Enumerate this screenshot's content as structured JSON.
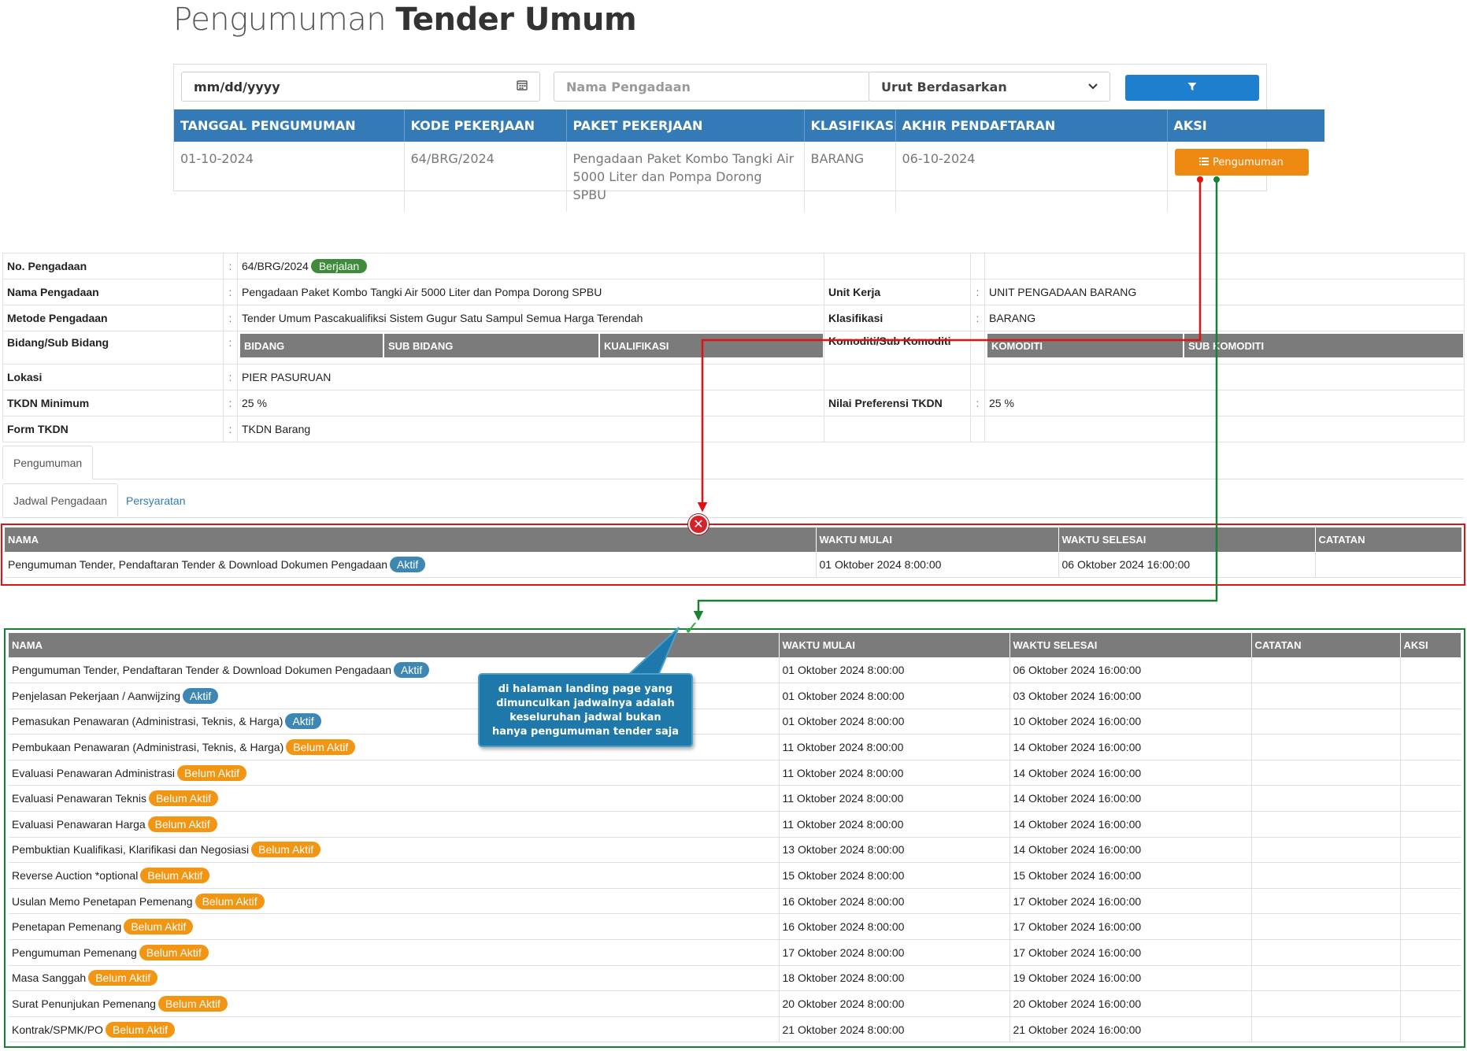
{
  "page_title": {
    "light": "Pengumuman",
    "bold": "Tender Umum"
  },
  "filters": {
    "date_value": "mm/dd/yyyy",
    "name_placeholder": "Nama Pengadaan",
    "sort_value": "Urut Berdasarkan",
    "filter_icon": "filter-icon",
    "calendar_icon": "calendar-icon"
  },
  "tender_table": {
    "headers": [
      "TANGGAL PENGUMUMAN",
      "KODE PEKERJAAN",
      "PAKET PEKERJAAN",
      "KLASIFIKASI",
      "AKHIR PENDAFTARAN",
      "AKSI"
    ],
    "rows": [
      {
        "tanggal": "01-10-2024",
        "kode": "64/BRG/2024",
        "paket": "Pengadaan Paket Kombo Tangki Air 5000 Liter dan Pompa Dorong SPBU",
        "klasifikasi": "BARANG",
        "akhir": "06-10-2024",
        "action_label": "Pengumuman",
        "action_icon": "list-icon"
      }
    ]
  },
  "detail": {
    "colon": ":",
    "no_pengadaan": {
      "label": "No. Pengadaan",
      "value": "64/BRG/2024",
      "status": "Berjalan"
    },
    "nama_pengadaan": {
      "label": "Nama Pengadaan",
      "value": "Pengadaan Paket Kombo Tangki Air 5000 Liter dan Pompa Dorong SPBU"
    },
    "unit_kerja": {
      "label": "Unit Kerja",
      "value": "UNIT PENGADAAN BARANG"
    },
    "metode_pengadaan": {
      "label": "Metode Pengadaan",
      "value": "Tender Umum Pascakualifiksi Sistem Gugur Satu Sampul Semua Harga Terendah"
    },
    "klasifikasi": {
      "label": "Klasifikasi",
      "value": "BARANG"
    },
    "bidang": {
      "label": "Bidang/Sub Bidang",
      "headers": [
        "BIDANG",
        "SUB BIDANG",
        "KUALIFIKASI"
      ]
    },
    "komoditi": {
      "label": "Komoditi/Sub Komoditi",
      "headers": [
        "KOMODITI",
        "SUB KOMODITI"
      ]
    },
    "lokasi": {
      "label": "Lokasi",
      "value": "PIER PASURUAN"
    },
    "tkdn_minimum": {
      "label": "TKDN Minimum",
      "value": "25 %"
    },
    "nilai_preferensi": {
      "label": "Nilai Preferensi TKDN",
      "value": "25 %"
    },
    "form_tkdn": {
      "label": "Form TKDN",
      "value": "TKDN Barang"
    }
  },
  "tabs": {
    "outer": [
      "Pengumuman"
    ],
    "inner": [
      "Jadwal Pengadaan",
      "Persyaratan"
    ]
  },
  "old_schedule": {
    "headers": [
      "NAMA",
      "WAKTU MULAI",
      "WAKTU SELESAI",
      "CATATAN"
    ],
    "rows": [
      {
        "nama": "Pengumuman Tender, Pendaftaran Tender & Download Dokumen Pengadaan",
        "status": "Aktif",
        "mulai": "01 Oktober 2024 8:00:00",
        "selesai": "06 Oktober 2024 16:00:00",
        "catatan": ""
      }
    ]
  },
  "new_schedule": {
    "headers": [
      "NAMA",
      "WAKTU MULAI",
      "WAKTU SELESAI",
      "CATATAN",
      "AKSI"
    ],
    "rows": [
      {
        "nama": "Pengumuman Tender, Pendaftaran Tender & Download Dokumen Pengadaan",
        "status": "Aktif",
        "mulai": "01 Oktober 2024 8:00:00",
        "selesai": "06 Oktober 2024 16:00:00"
      },
      {
        "nama": "Penjelasan Pekerjaan / Aanwijzing",
        "status": "Aktif",
        "mulai": "01 Oktober 2024 8:00:00",
        "selesai": "03 Oktober 2024 16:00:00"
      },
      {
        "nama": "Pemasukan Penawaran (Administrasi, Teknis, & Harga)",
        "status": "Aktif",
        "mulai": "01 Oktober 2024 8:00:00",
        "selesai": "10 Oktober 2024 16:00:00"
      },
      {
        "nama": "Pembukaan Penawaran (Administrasi, Teknis, & Harga)",
        "status": "Belum Aktif",
        "mulai": "11 Oktober 2024 8:00:00",
        "selesai": "14 Oktober 2024 16:00:00"
      },
      {
        "nama": "Evaluasi Penawaran Administrasi",
        "status": "Belum Aktif",
        "mulai": "11 Oktober 2024 8:00:00",
        "selesai": "14 Oktober 2024 16:00:00"
      },
      {
        "nama": "Evaluasi Penawaran Teknis",
        "status": "Belum Aktif",
        "mulai": "11 Oktober 2024 8:00:00",
        "selesai": "14 Oktober 2024 16:00:00"
      },
      {
        "nama": "Evaluasi Penawaran Harga",
        "status": "Belum Aktif",
        "mulai": "11 Oktober 2024 8:00:00",
        "selesai": "14 Oktober 2024 16:00:00"
      },
      {
        "nama": "Pembuktian Kualifikasi, Klarifikasi dan Negosiasi",
        "status": "Belum Aktif",
        "mulai": "13 Oktober 2024 8:00:00",
        "selesai": "14 Oktober 2024 16:00:00"
      },
      {
        "nama": "Reverse Auction *optional",
        "status": "Belum Aktif",
        "mulai": "15 Oktober 2024 8:00:00",
        "selesai": "15 Oktober 2024 16:00:00"
      },
      {
        "nama": "Usulan Memo Penetapan Pemenang",
        "status": "Belum Aktif",
        "mulai": "16 Oktober 2024 8:00:00",
        "selesai": "17 Oktober 2024 16:00:00"
      },
      {
        "nama": "Penetapan Pemenang",
        "status": "Belum Aktif",
        "mulai": "16 Oktober 2024 8:00:00",
        "selesai": "17 Oktober 2024 16:00:00"
      },
      {
        "nama": "Pengumuman Pemenang",
        "status": "Belum Aktif",
        "mulai": "17 Oktober 2024 8:00:00",
        "selesai": "17 Oktober 2024 16:00:00"
      },
      {
        "nama": "Masa Sanggah",
        "status": "Belum Aktif",
        "mulai": "18 Oktober 2024 8:00:00",
        "selesai": "19 Oktober 2024 16:00:00"
      },
      {
        "nama": "Surat Penunjukan Pemenang",
        "status": "Belum Aktif",
        "mulai": "20 Oktober 2024 8:00:00",
        "selesai": "20 Oktober 2024 16:00:00"
      },
      {
        "nama": "Kontrak/SPMK/PO",
        "status": "Belum Aktif",
        "mulai": "21 Oktober 2024 8:00:00",
        "selesai": "21 Oktober 2024 16:00:00"
      }
    ]
  },
  "annotations": {
    "callout_text": "di halaman landing page yang dimunculkan jadwalnya adalah keseluruhan jadwal bukan hanya pengumuman tender saja",
    "reject_icon": "x-circle-icon",
    "approve_icon": "checkmark-icon"
  },
  "colors": {
    "header_blue": "#337ab7",
    "button_orange": "#ee8a11",
    "badge_green": "#3d8c3a",
    "pill_blue": "#3e87b3",
    "pill_orange": "#f29512",
    "annotation_red": "#e01212",
    "annotation_green": "#1a8035",
    "callout_blue": "#1e78aa"
  }
}
